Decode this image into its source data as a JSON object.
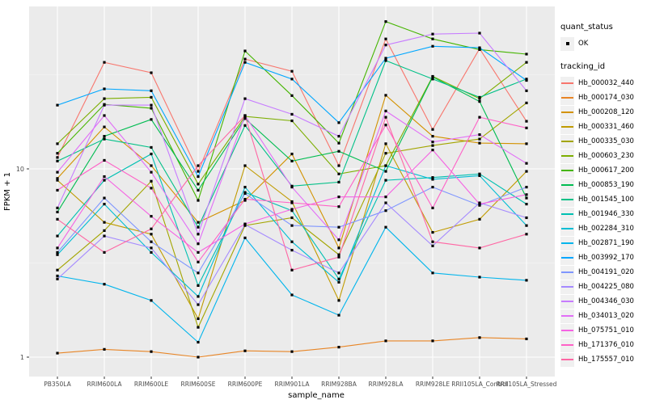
{
  "axes": {
    "x_title": "sample_name",
    "y_title": "FPKM + 1",
    "y_tick_labels": [
      {
        "value": 10,
        "label": "10"
      },
      {
        "value": 1,
        "label": "1"
      }
    ]
  },
  "legend": {
    "quant_status_title": "quant_status",
    "quant_status_items": [
      "OK"
    ],
    "tracking_id_title": "tracking_id"
  },
  "colors": {
    "panel_bg": "#EBEBEB",
    "grid_major": "#FFFFFF",
    "grid_minor": "#F5F5F5",
    "tick_label": "#4D4D4D",
    "tick_mark": "#333333",
    "axis_title": "#000000",
    "point": "#000000"
  },
  "chart_data": {
    "type": "line",
    "yscale": "log10",
    "xlabel": "sample_name",
    "ylabel": "FPKM + 1",
    "ylim": [
      0.8,
      73
    ],
    "y_major_ticks": [
      1,
      10
    ],
    "y_minor_ticks": [
      3.162,
      31.623
    ],
    "grid": true,
    "legend_position": "right",
    "marker": "small-black-square",
    "x": [
      "PB350LA",
      "RRIM600LA",
      "RRIM600LE",
      "RRIM600SE",
      "RRIM600PE",
      "RRIM901LA",
      "RRIM928BA",
      "RRIM928LA",
      "RRIM928LE",
      "RRII105LA_Control",
      "RRII105LA_Stressed"
    ],
    "series": [
      {
        "name": "Hb_000032_440",
        "color": "#F8766D",
        "values": [
          11.5,
          36.8,
          32.4,
          9.7,
          38.3,
          33.0,
          10.4,
          49.0,
          16.2,
          43.5,
          17.9
        ]
      },
      {
        "name": "Hb_000174_030",
        "color": "#E88526",
        "values": [
          1.05,
          1.1,
          1.07,
          1.0,
          1.08,
          1.07,
          1.13,
          1.22,
          1.22,
          1.27,
          1.25
        ]
      },
      {
        "name": "Hb_000208_120",
        "color": "#D39200",
        "values": [
          8.9,
          16.7,
          10.4,
          5.2,
          6.8,
          12.0,
          3.8,
          24.6,
          14.9,
          13.7,
          13.6
        ]
      },
      {
        "name": "Hb_000331_460",
        "color": "#C09B00",
        "values": [
          8.7,
          5.2,
          4.5,
          1.6,
          10.4,
          6.7,
          2.0,
          13.6,
          4.6,
          5.4,
          9.7
        ]
      },
      {
        "name": "Hb_000335_030",
        "color": "#A3A500",
        "values": [
          2.9,
          4.7,
          8.6,
          1.44,
          5.0,
          5.5,
          3.5,
          12.1,
          13.3,
          14.4,
          22.4
        ]
      },
      {
        "name": "Hb_000603_230",
        "color": "#7CAE00",
        "values": [
          13.6,
          23.6,
          24.0,
          8.3,
          19.0,
          18.0,
          9.4,
          10.4,
          31.0,
          23.6,
          36.8
        ]
      },
      {
        "name": "Hb_000617_200",
        "color": "#45B500",
        "values": [
          12.1,
          22.0,
          21.0,
          6.8,
          42.3,
          24.5,
          13.7,
          60.6,
          49.0,
          43.0,
          40.7
        ]
      },
      {
        "name": "Hb_000853_190",
        "color": "#00BC51",
        "values": [
          5.9,
          14.9,
          18.3,
          7.7,
          18.5,
          11.0,
          12.4,
          9.7,
          30.8,
          22.8,
          7.0
        ]
      },
      {
        "name": "Hb_001545_100",
        "color": "#00C087",
        "values": [
          11.0,
          14.4,
          13.0,
          4.9,
          17.0,
          8.1,
          8.5,
          37.6,
          30.0,
          24.0,
          30.0
        ]
      },
      {
        "name": "Hb_001946_330",
        "color": "#00C0B2",
        "values": [
          4.4,
          8.7,
          12.0,
          2.4,
          7.5,
          6.0,
          2.6,
          8.7,
          9.0,
          9.4,
          6.5
        ]
      },
      {
        "name": "Hb_002284_310",
        "color": "#00BDD4",
        "values": [
          3.5,
          6.5,
          3.6,
          2.1,
          8.0,
          4.1,
          2.5,
          10.4,
          8.8,
          9.2,
          5.0
        ]
      },
      {
        "name": "Hb_002871_190",
        "color": "#00B5EC",
        "values": [
          2.7,
          2.44,
          2.0,
          1.2,
          4.3,
          2.14,
          1.67,
          4.9,
          2.8,
          2.66,
          2.56
        ]
      },
      {
        "name": "Hb_003992_170",
        "color": "#00A7FF",
        "values": [
          21.8,
          26.6,
          26.0,
          9.1,
          36.8,
          30.0,
          17.6,
          38.7,
          44.8,
          44.0,
          29.5
        ]
      },
      {
        "name": "Hb_004191_020",
        "color": "#7F96FF",
        "values": [
          3.6,
          7.0,
          4.1,
          2.8,
          7.4,
          5.0,
          4.9,
          6.0,
          8.0,
          6.4,
          8.0
        ]
      },
      {
        "name": "Hb_004225_080",
        "color": "#A58AFF",
        "values": [
          2.6,
          4.4,
          3.8,
          1.9,
          5.06,
          3.7,
          2.8,
          6.6,
          3.9,
          6.6,
          5.5
        ]
      },
      {
        "name": "Hb_004346_030",
        "color": "#C77CFF",
        "values": [
          6.2,
          21.8,
          21.8,
          4.5,
          23.6,
          19.5,
          14.9,
          45.5,
          52.0,
          52.6,
          26.0
        ]
      },
      {
        "name": "Hb_034013_020",
        "color": "#E26EF7",
        "values": [
          9.6,
          19.2,
          9.6,
          4.0,
          19.2,
          8.0,
          4.2,
          20.3,
          13.9,
          15.2,
          10.7
        ]
      },
      {
        "name": "Hb_075751_010",
        "color": "#F564E3",
        "values": [
          3.8,
          9.1,
          5.6,
          3.6,
          5.1,
          6.1,
          7.1,
          7.1,
          12.6,
          6.5,
          7.3
        ]
      },
      {
        "name": "Hb_171376_010",
        "color": "#FF61C7",
        "values": [
          7.7,
          11.1,
          7.9,
          3.2,
          6.9,
          6.6,
          6.3,
          17.1,
          6.2,
          18.8,
          16.5
        ]
      },
      {
        "name": "Hb_175557_010",
        "color": "#FF67A4",
        "values": [
          5.4,
          3.6,
          4.8,
          10.4,
          19.2,
          2.9,
          3.4,
          18.8,
          4.1,
          3.8,
          4.5
        ]
      }
    ]
  }
}
